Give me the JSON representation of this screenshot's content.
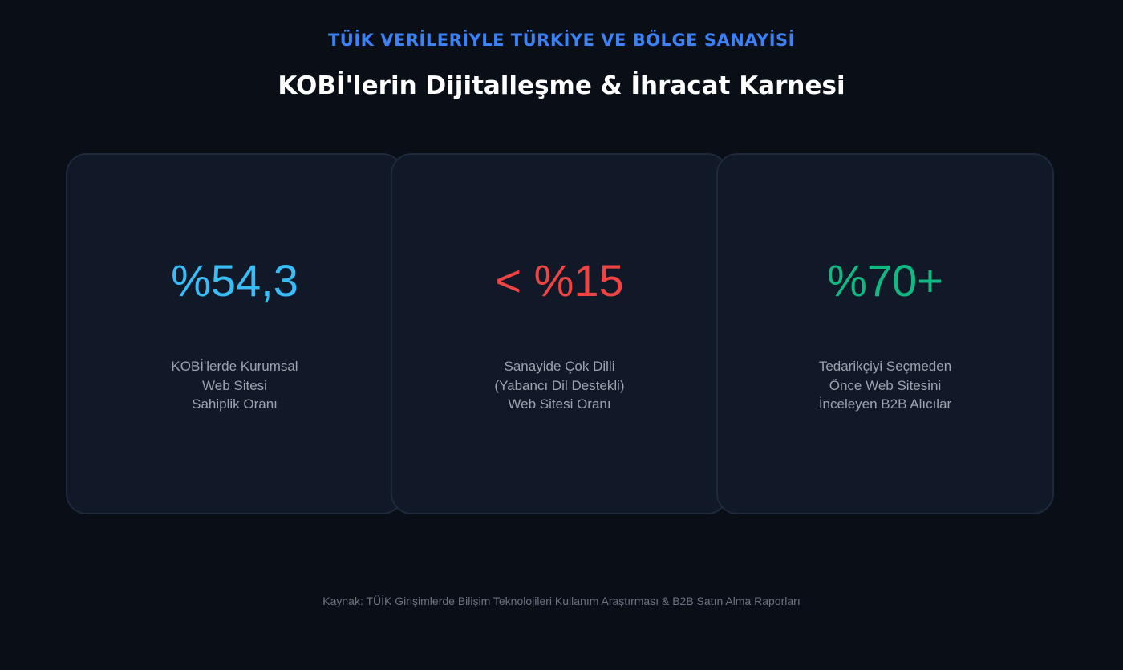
{
  "header": {
    "kicker": "TÜİK VERİLERİYLE TÜRKİYE VE BÖLGE SANAYİSİ",
    "title": "KOBİ'lerin Dijitalleşme & İhracat Karnesi"
  },
  "cards": [
    {
      "stat": "%54,3",
      "color": "#38bdf8",
      "label": [
        "KOBİ'lerde Kurumsal",
        "Web Sitesi",
        "Sahiplik Oranı"
      ]
    },
    {
      "stat": "< %15",
      "color": "#ef4444",
      "label": [
        "Sanayide Çok Dilli",
        "(Yabancı Dil Destekli)",
        "Web Sitesi Oranı"
      ]
    },
    {
      "stat": "%70+",
      "color": "#10b981",
      "label": [
        "Tedarikçiyi Seçmeden",
        "Önce Web Sitesini",
        "İnceleyen B2B Alıcılar"
      ]
    }
  ],
  "footer": {
    "source": "Kaynak: TÜİK Girişimlerde Bilişim Teknolojileri Kullanım Araştırması & B2B Satın Alma Raporları"
  }
}
